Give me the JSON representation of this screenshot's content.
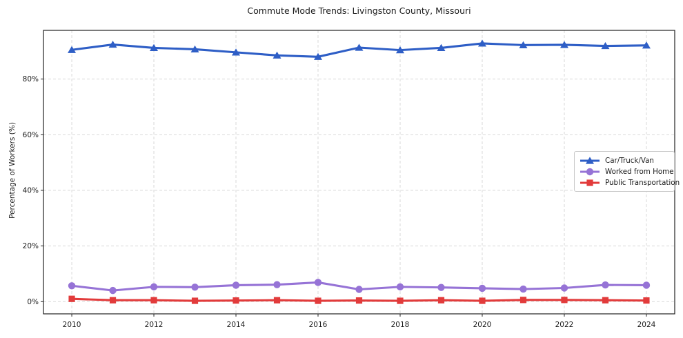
{
  "title": "Commute Mode Trends: Livingston County, Missouri",
  "chart_data": {
    "type": "line",
    "title": "Commute Mode Trends: Livingston County, Missouri",
    "xlabel": "",
    "ylabel": "Percentage of Workers (%)",
    "x": [
      2010,
      2011,
      2012,
      2013,
      2014,
      2015,
      2016,
      2017,
      2018,
      2019,
      2020,
      2021,
      2022,
      2023,
      2024
    ],
    "series": [
      {
        "name": "Car/Truck/Van",
        "color": "#2e5ec6",
        "marker": "triangle",
        "values": [
          90.5,
          92.4,
          91.2,
          90.7,
          89.6,
          88.5,
          88.0,
          91.3,
          90.4,
          91.2,
          92.8,
          92.2,
          92.3,
          91.9,
          92.1
        ]
      },
      {
        "name": "Worked from Home",
        "color": "#9673d6",
        "marker": "circle",
        "values": [
          5.7,
          4.0,
          5.3,
          5.2,
          5.9,
          6.1,
          6.9,
          4.4,
          5.3,
          5.1,
          4.8,
          4.5,
          4.9,
          6.0,
          5.9
        ]
      },
      {
        "name": "Public Transportation",
        "color": "#e23b3b",
        "marker": "square",
        "values": [
          1.0,
          0.5,
          0.5,
          0.3,
          0.4,
          0.5,
          0.3,
          0.4,
          0.3,
          0.5,
          0.3,
          0.6,
          0.6,
          0.5,
          0.4
        ]
      }
    ],
    "yticks": [
      0,
      20,
      40,
      60,
      80
    ],
    "ytick_labels": [
      "0%",
      "20%",
      "40%",
      "60%",
      "80%"
    ],
    "xticks": [
      2010,
      2012,
      2014,
      2016,
      2018,
      2020,
      2022,
      2024
    ],
    "xtick_labels": [
      "2010",
      "2012",
      "2014",
      "2016",
      "2018",
      "2020",
      "2022",
      "2024"
    ],
    "xlim": [
      2009.31,
      2024.69
    ],
    "ylim": [
      -4.4,
      97.5
    ],
    "grid": true,
    "grid_style": "dashed",
    "legend_position": "center-right",
    "colors": {
      "grid": "#d8d8d8",
      "axis": "#222222",
      "background": "#ffffff"
    }
  }
}
